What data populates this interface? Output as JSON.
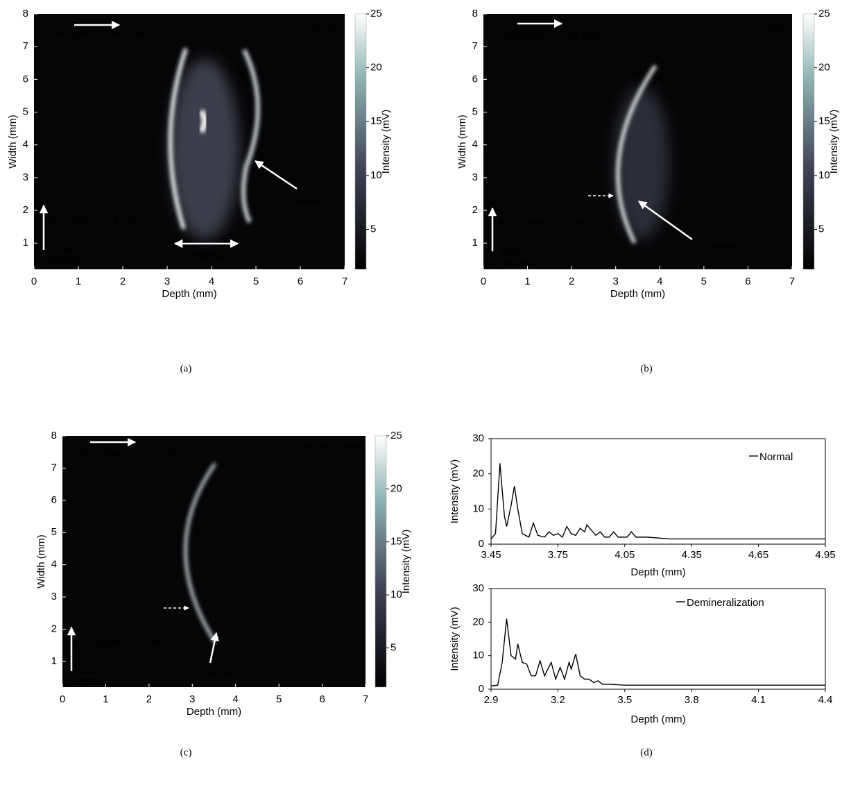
{
  "chart_data": [
    {
      "type": "heatmap",
      "panel": "(a)",
      "title": "Normal",
      "xlabel": "Depth (mm)",
      "ylabel": "Width (mm)",
      "xlim": [
        0,
        7
      ],
      "xticks": [
        0,
        1,
        2,
        3,
        4,
        5,
        6,
        7
      ],
      "ylim": [
        0.2,
        8
      ],
      "yticks": [
        1,
        2,
        3,
        4,
        5,
        6,
        7,
        8
      ],
      "colorbar": {
        "label": "Intensity (mV)",
        "lim": [
          1.3,
          25
        ],
        "ticks": [
          5,
          10,
          15,
          20,
          25
        ]
      },
      "annotations": [
        "Resolution: 0.003 mm",
        "Resolution: 0.2 mm",
        "Scan",
        "Direction",
        "Dentine",
        "Enamel"
      ]
    },
    {
      "type": "heatmap",
      "panel": "(b)",
      "title": "Normal",
      "xlabel": "Depth (mm)",
      "ylabel": "Width (mm)",
      "xlim": [
        0,
        7
      ],
      "xticks": [
        0,
        1,
        2,
        3,
        4,
        5,
        6,
        7
      ],
      "ylim": [
        0.2,
        8
      ],
      "yticks": [
        1,
        2,
        3,
        4,
        5,
        6,
        7,
        8
      ],
      "colorbar": {
        "label": "Intensity (mV)",
        "lim": [
          1.3,
          25
        ],
        "ticks": [
          5,
          10,
          15,
          20,
          25
        ]
      },
      "annotations": [
        "Resolution: 0.003 mm",
        "Resolution: 0.2 mm",
        "Scan",
        "Direction",
        "Enamel"
      ]
    },
    {
      "type": "heatmap",
      "panel": "(c)",
      "title": "Demineralization",
      "xlabel": "Depth (mm)",
      "ylabel": "Width (mm)",
      "xlim": [
        0,
        7
      ],
      "xticks": [
        0,
        1,
        2,
        3,
        4,
        5,
        6,
        7
      ],
      "ylim": [
        0.2,
        8
      ],
      "yticks": [
        1,
        2,
        3,
        4,
        5,
        6,
        7,
        8
      ],
      "colorbar": {
        "label": "Intensity (mV)",
        "lim": [
          1.3,
          25
        ],
        "ticks": [
          5,
          10,
          15,
          20,
          25
        ]
      },
      "annotations": [
        "Resolution: 0.003 mm",
        "Resolution: 0.2 mm",
        "Scan",
        "Direction",
        "Enamel"
      ]
    },
    {
      "type": "line",
      "panel": "(d)",
      "xlabel": "Depth (mm)",
      "ylabel": "Intensity (mV)",
      "xlim": [
        3.45,
        4.95
      ],
      "xticks": [
        3.45,
        3.75,
        4.05,
        4.35,
        4.65,
        4.95
      ],
      "ylim": [
        0,
        30
      ],
      "yticks": [
        0,
        10,
        20,
        30
      ],
      "series": [
        {
          "name": "Normal",
          "color": "#000000",
          "x": [
            3.45,
            3.47,
            3.49,
            3.51,
            3.52,
            3.54,
            3.555,
            3.57,
            3.59,
            3.62,
            3.64,
            3.66,
            3.69,
            3.71,
            3.73,
            3.75,
            3.77,
            3.79,
            3.81,
            3.83,
            3.85,
            3.87,
            3.88,
            3.9,
            3.92,
            3.94,
            3.96,
            3.98,
            4.0,
            4.02,
            4.06,
            4.08,
            4.1,
            4.15,
            4.25,
            4.35,
            4.5,
            4.65,
            4.8,
            4.95
          ],
          "values": [
            1.5,
            3,
            23,
            8,
            5,
            11,
            16.5,
            10,
            3,
            2,
            6,
            2.5,
            2,
            3.5,
            2.5,
            3,
            2,
            5,
            3,
            2.5,
            4.5,
            3.5,
            5.5,
            4,
            2.5,
            3.5,
            2,
            2,
            3.5,
            2,
            2,
            3.5,
            2,
            2,
            1.5,
            1.5,
            1.5,
            1.5,
            1.5,
            1.5
          ]
        }
      ]
    },
    {
      "type": "line",
      "xlabel": "Depth (mm)",
      "ylabel": "Intensity (mV)",
      "xlim": [
        2.9,
        4.4
      ],
      "xticks": [
        2.9,
        3.2,
        3.5,
        3.8,
        4.1,
        4.4
      ],
      "ylim": [
        0,
        30
      ],
      "yticks": [
        0,
        10,
        20,
        30
      ],
      "series": [
        {
          "name": "Demineralization",
          "color": "#000000",
          "x": [
            2.9,
            2.93,
            2.95,
            2.97,
            2.99,
            3.01,
            3.02,
            3.04,
            3.06,
            3.08,
            3.1,
            3.12,
            3.14,
            3.17,
            3.19,
            3.21,
            3.23,
            3.25,
            3.26,
            3.28,
            3.3,
            3.32,
            3.34,
            3.36,
            3.38,
            3.4,
            3.43,
            3.5,
            3.8,
            4.1,
            4.4
          ],
          "values": [
            1,
            1.2,
            8,
            21,
            10,
            9,
            13.5,
            8,
            7.5,
            4,
            4,
            8.5,
            4,
            8,
            3,
            6.5,
            3,
            8,
            6,
            10.5,
            4,
            3,
            3,
            2,
            2.5,
            1.5,
            1.5,
            1.2,
            1.2,
            1.2,
            1.2
          ]
        }
      ]
    }
  ]
}
